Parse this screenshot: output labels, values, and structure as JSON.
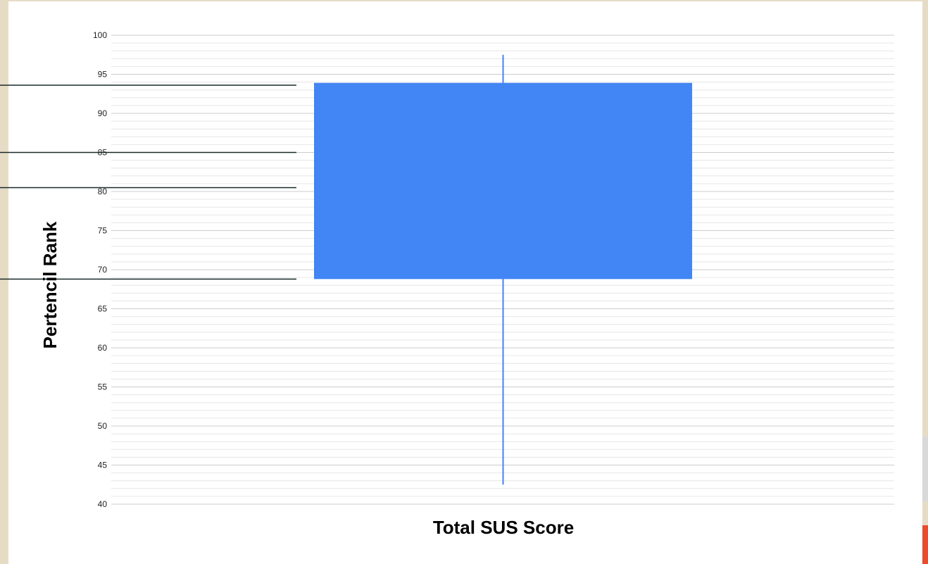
{
  "chart_data": {
    "type": "box",
    "title": "",
    "xlabel": "Total SUS Score",
    "ylabel": "Pertencil Rank",
    "ylim": [
      40,
      100
    ],
    "y_ticks": [
      "100",
      "95",
      "90",
      "85",
      "80",
      "75",
      "70",
      "65",
      "60",
      "55",
      "50",
      "45",
      "40"
    ],
    "minor_grid_step": 1,
    "grid": true,
    "legend": "none",
    "categories": [
      "Total SUS Score"
    ],
    "series": [
      {
        "min": 42.5,
        "q1": 68.8,
        "q3": 93.9,
        "max": 97.5
      }
    ],
    "reference_lines": [
      93.6,
      85.0,
      80.5,
      68.8
    ],
    "colors": {
      "box": "#4285f4",
      "whisker": "#4285f4",
      "reference_line": "#1a2a2a",
      "grid_major": "#cccccc",
      "grid_minor": "#e6e6e6"
    }
  }
}
